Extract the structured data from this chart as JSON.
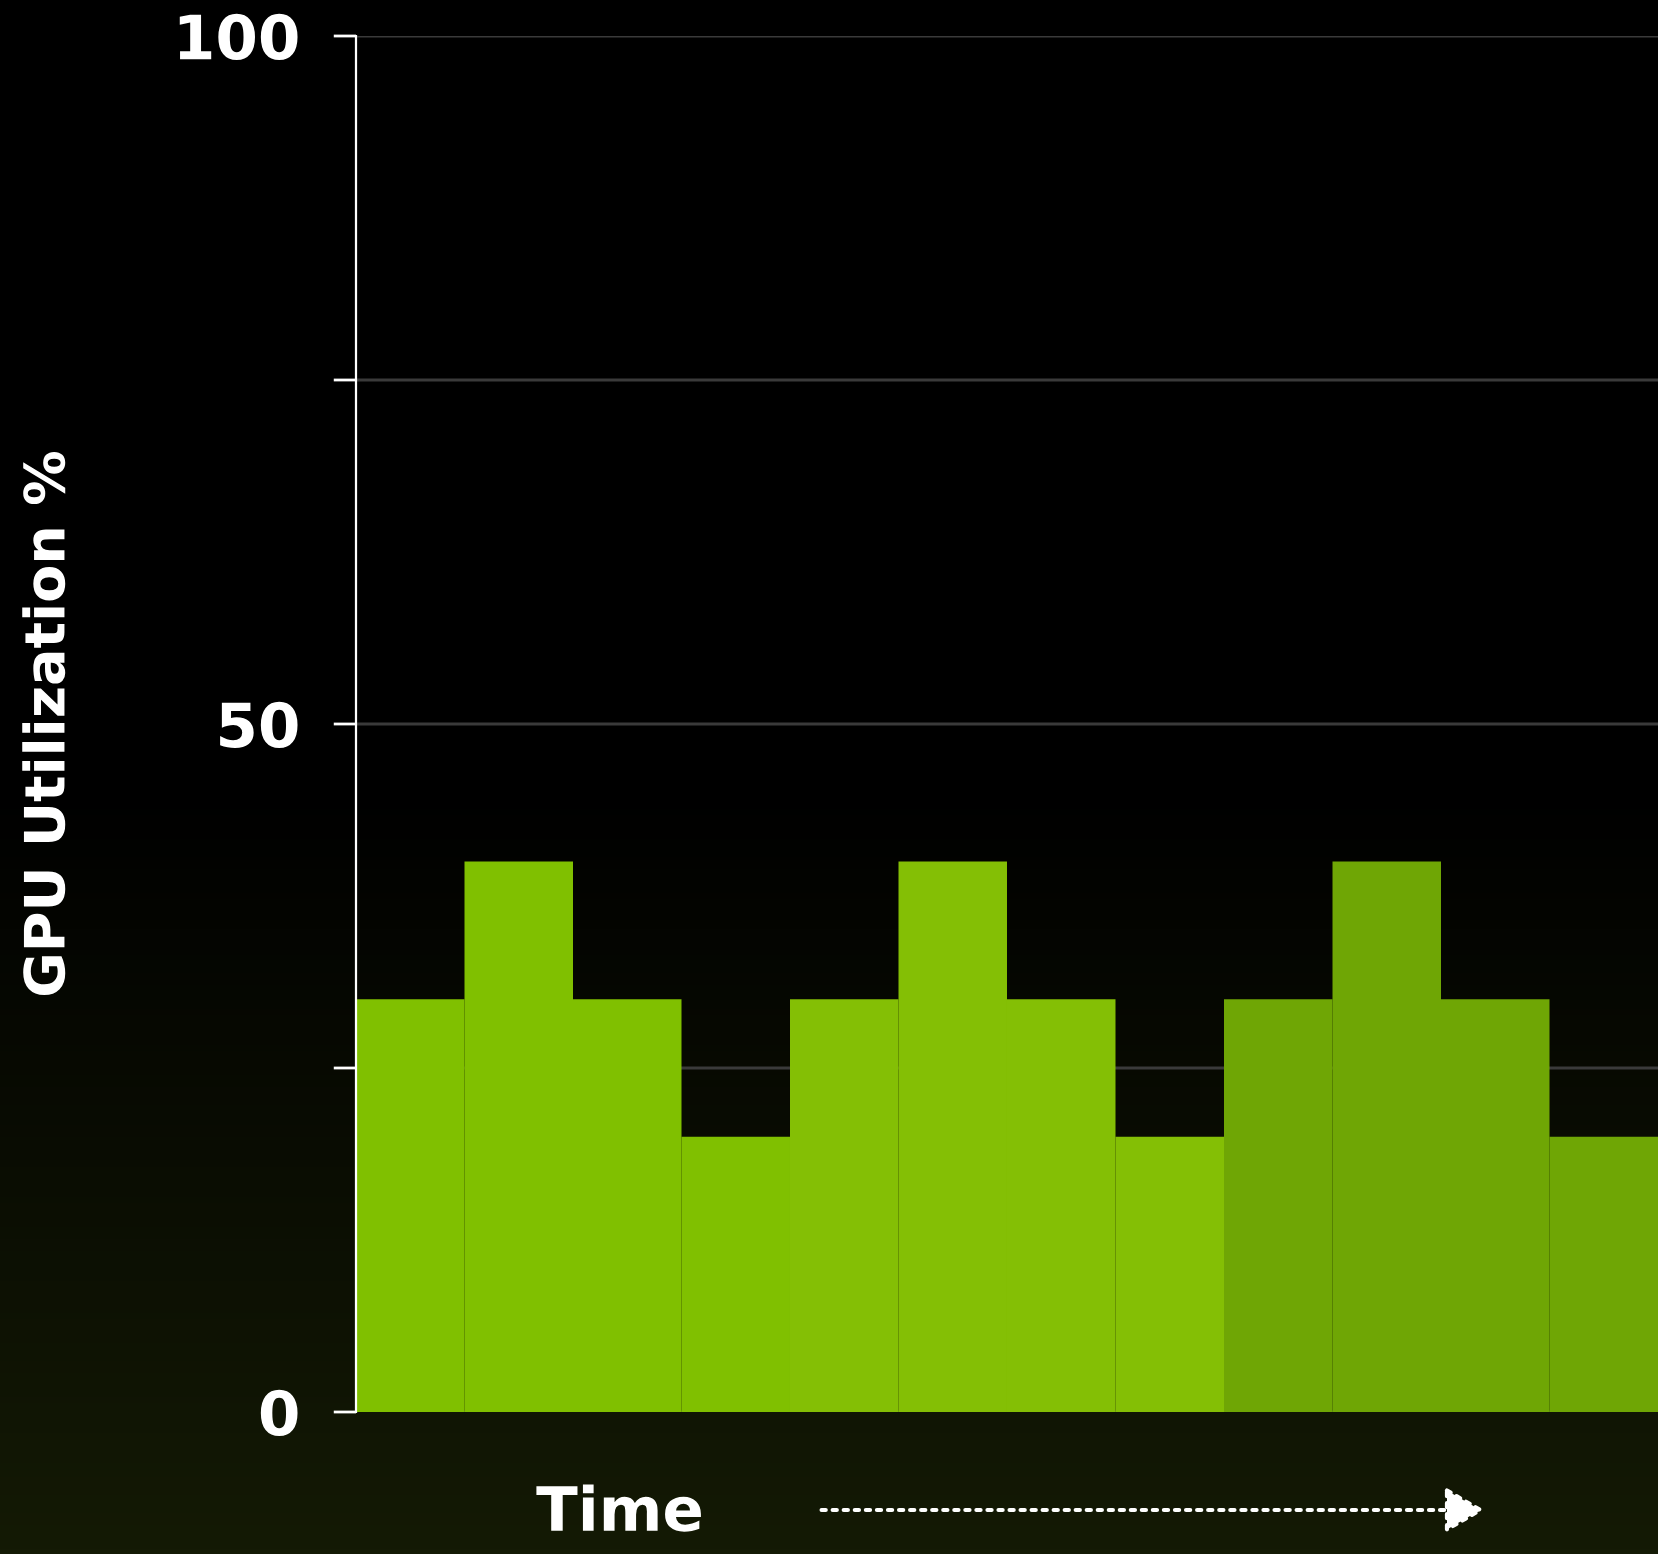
{
  "chart_data": {
    "type": "bar",
    "categories": [
      null,
      null,
      null,
      null,
      null,
      null,
      null,
      null,
      null,
      null,
      null,
      null
    ],
    "values": [
      30,
      40,
      30,
      20,
      30,
      40,
      30,
      20,
      30,
      40,
      30,
      20
    ],
    "colors": [
      "#80c000",
      "#80c000",
      "#80c000",
      "#80c000",
      "#84bf05",
      "#84bf05",
      "#84bf05",
      "#84bf05",
      "#6fa605",
      "#6fa605",
      "#6fa605",
      "#6fa605"
    ],
    "ylabel": "GPU Utilization %",
    "xlabel": "Time",
    "ylim": [
      0,
      100
    ],
    "yticks": [
      0,
      {
        "value": 25,
        "label": null
      },
      50,
      {
        "value": 75,
        "label": null
      },
      100
    ],
    "grid": "y",
    "legend": false,
    "tick_labels": "y"
  }
}
